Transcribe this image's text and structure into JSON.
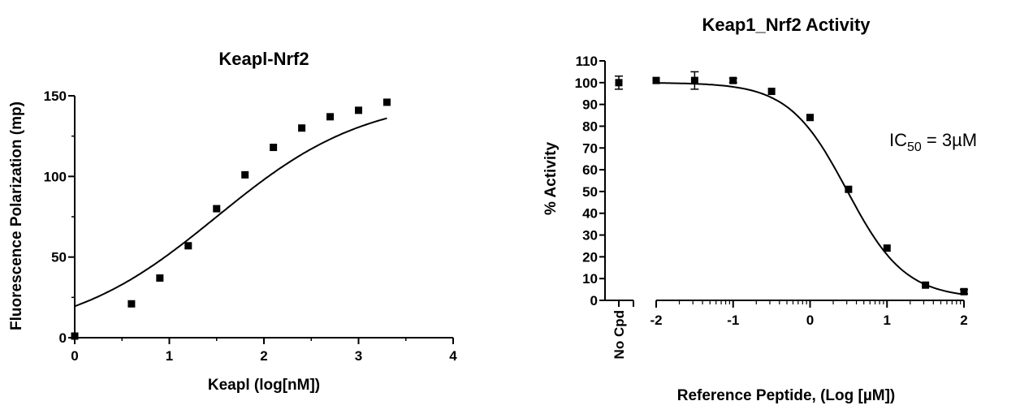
{
  "chart_data": [
    {
      "type": "scatter",
      "title": "Keapl-Nrf2",
      "xlabel": "Keapl (log[nM])",
      "ylabel": "Fluorescence Polarization (mp)",
      "xlim": [
        0,
        4
      ],
      "ylim": [
        0,
        150
      ],
      "x_ticks": [
        "0",
        "1",
        "2",
        "3",
        "4"
      ],
      "y_ticks": [
        "0",
        "50",
        "100",
        "150"
      ],
      "series": [
        {
          "points": [
            {
              "x": 0.0,
              "y": 1
            },
            {
              "x": 0.6,
              "y": 21
            },
            {
              "x": 0.9,
              "y": 37
            },
            {
              "x": 1.2,
              "y": 57
            },
            {
              "x": 1.5,
              "y": 80
            },
            {
              "x": 1.8,
              "y": 101
            },
            {
              "x": 2.1,
              "y": 118
            },
            {
              "x": 2.4,
              "y": 130
            },
            {
              "x": 2.7,
              "y": 137
            },
            {
              "x": 3.0,
              "y": 141
            },
            {
              "x": 3.3,
              "y": 146
            }
          ],
          "fit": {
            "model": "sigmoidal",
            "bottom": 0,
            "top": 150,
            "x50": 1.5,
            "slope": 0.55
          }
        }
      ]
    },
    {
      "type": "scatter",
      "title": "Keap1_Nrf2 Activity",
      "xlabel": "Reference Peptide, (Log [µM])",
      "ylabel": "% Activity",
      "xlim": [
        -2,
        2
      ],
      "ylim": [
        0,
        110
      ],
      "x_ticks": [
        "-2",
        "-1",
        "0",
        "1",
        "2"
      ],
      "y_ticks": [
        "0",
        "10",
        "20",
        "30",
        "40",
        "50",
        "60",
        "70",
        "80",
        "90",
        "100",
        "110"
      ],
      "control_label": "No Cpd",
      "control_point": {
        "y": 100,
        "err": 3
      },
      "annotation": {
        "prefix": "IC",
        "sub": "50",
        "suffix": " = 3µM"
      },
      "series": [
        {
          "points": [
            {
              "x": -2.0,
              "y": 101,
              "err": 0
            },
            {
              "x": -1.5,
              "y": 101,
              "err": 4
            },
            {
              "x": -1.0,
              "y": 101,
              "err": 1
            },
            {
              "x": -0.5,
              "y": 96,
              "err": 0
            },
            {
              "x": 0.0,
              "y": 84,
              "err": 0
            },
            {
              "x": 0.5,
              "y": 51,
              "err": 0
            },
            {
              "x": 1.0,
              "y": 24,
              "err": 0
            },
            {
              "x": 1.5,
              "y": 7,
              "err": 0
            },
            {
              "x": 2.0,
              "y": 4,
              "err": 1
            }
          ],
          "fit": {
            "model": "sigmoidal",
            "bottom": 1,
            "top": 100,
            "x50": 0.48,
            "slope": -1.15
          }
        }
      ]
    }
  ]
}
